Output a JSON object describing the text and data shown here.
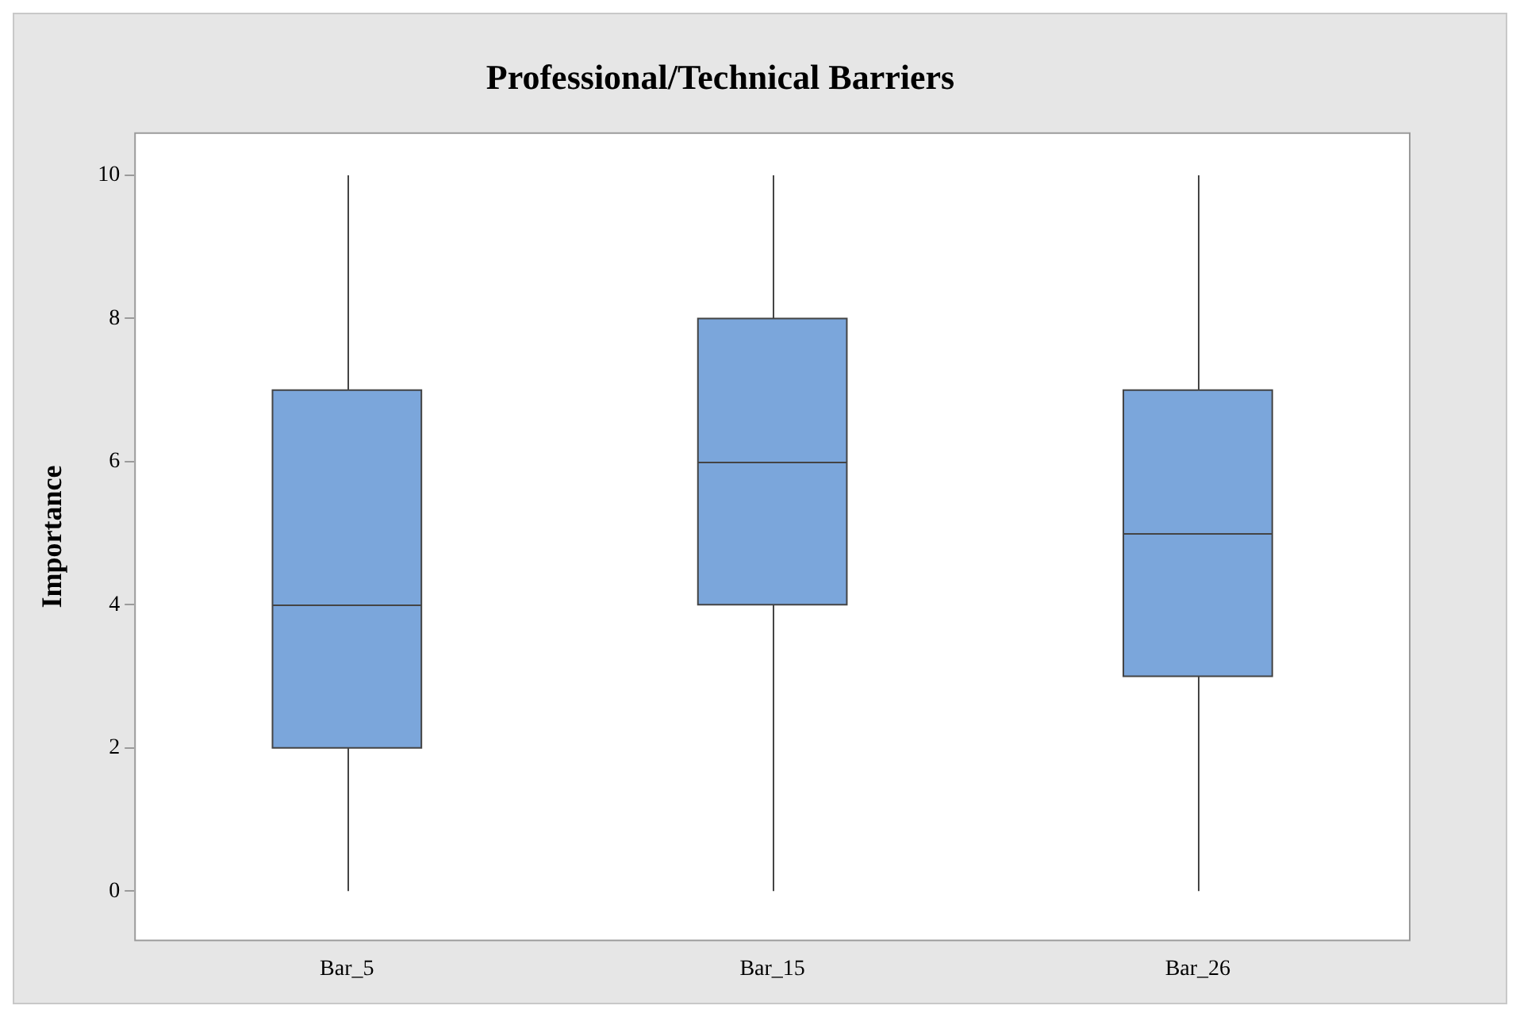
{
  "chart_data": {
    "type": "box",
    "title": "Professional/Technical Barriers",
    "ylabel": "Importance",
    "categories": [
      "Bar_5",
      "Bar_15",
      "Bar_26"
    ],
    "color": "#7ba6db",
    "ylim": [
      -0.7,
      10.6
    ],
    "yticks": [
      0,
      2,
      4,
      6,
      8,
      10
    ],
    "boxes": [
      {
        "low": 0,
        "q1": 2,
        "median": 4,
        "q3": 7,
        "high": 10
      },
      {
        "low": 0,
        "q1": 4,
        "median": 6,
        "q3": 8,
        "high": 10
      },
      {
        "low": 0,
        "q1": 3,
        "median": 5,
        "q3": 7,
        "high": 10
      }
    ]
  }
}
